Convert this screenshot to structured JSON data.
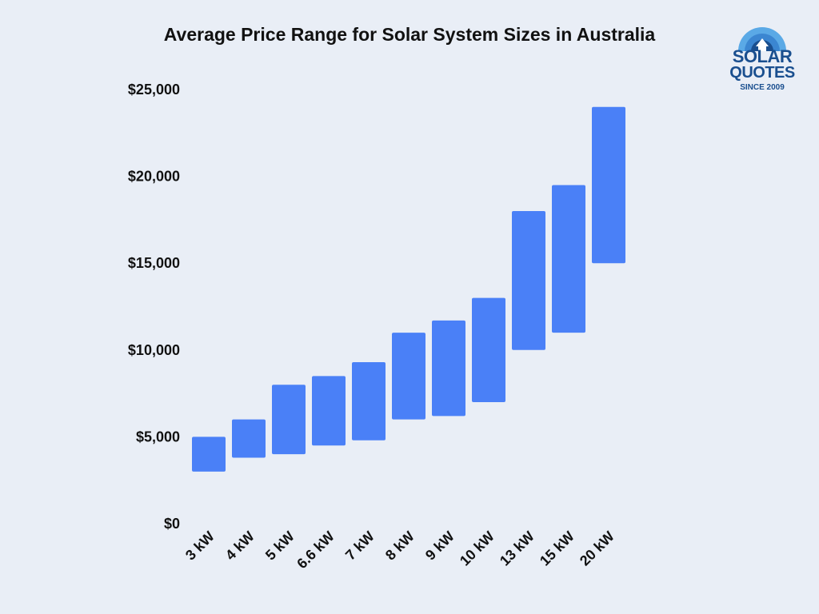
{
  "chart_data": {
    "type": "bar",
    "subtype": "floating-range",
    "title": "Average Price Range for Solar System Sizes in Australia",
    "xlabel": "",
    "ylabel": "",
    "categories": [
      "3 kW",
      "4 kW",
      "5 kW",
      "6.6 kW",
      "7 kW",
      "8 kW",
      "9 kW",
      "10 kW",
      "13 kW",
      "15 kW",
      "20 kW"
    ],
    "low": [
      3000,
      3800,
      4000,
      4500,
      4800,
      6000,
      6200,
      7000,
      10000,
      11000,
      15000
    ],
    "high": [
      5000,
      6000,
      8000,
      8500,
      9300,
      11000,
      11700,
      13000,
      18000,
      19500,
      24000
    ],
    "ylim": [
      0,
      25000
    ],
    "yticks": [
      0,
      5000,
      10000,
      15000,
      20000,
      25000
    ],
    "ytick_labels": [
      "$0",
      "$5,000",
      "$10,000",
      "$15,000",
      "$20,000",
      "$25,000"
    ],
    "grid": false,
    "legend": "none",
    "bar_color": "#4a80f7"
  },
  "logo": {
    "word1": "SOLAR",
    "word2": "QUOTES",
    "tagline": "SINCE 2009",
    "colors": {
      "dark": "#1a4f8f",
      "light": "#5aa9e6"
    }
  },
  "colors": {
    "background": "#e9eef6",
    "text": "#111111"
  }
}
